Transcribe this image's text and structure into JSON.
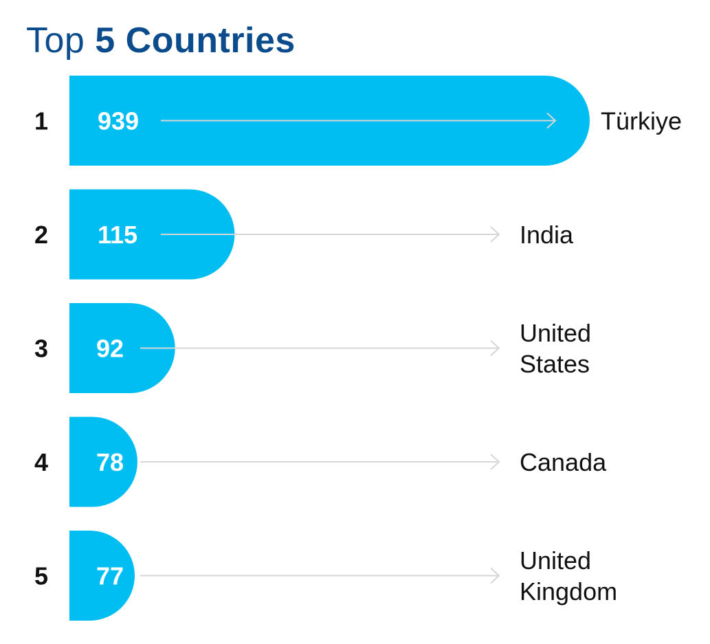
{
  "title": {
    "prefix": "Top",
    "emphasis": "5 Countries"
  },
  "colors": {
    "title": "#0d4c8c",
    "bar": "#00bdf2",
    "value_text": "#ffffff",
    "arrow": "#d6d6d6",
    "rank_text": "#111111",
    "country_text": "#111111"
  },
  "chart_data": {
    "type": "bar",
    "orientation": "horizontal",
    "title": "Top 5 Countries",
    "ranks": [
      "1",
      "2",
      "3",
      "4",
      "5"
    ],
    "categories": [
      [
        "Türkiye"
      ],
      [
        "India"
      ],
      [
        "United",
        "States"
      ],
      [
        "Canada"
      ],
      [
        "United",
        "Kingdom"
      ]
    ],
    "values": [
      939,
      115,
      92,
      78,
      77
    ],
    "grid": false,
    "legend": "none"
  }
}
